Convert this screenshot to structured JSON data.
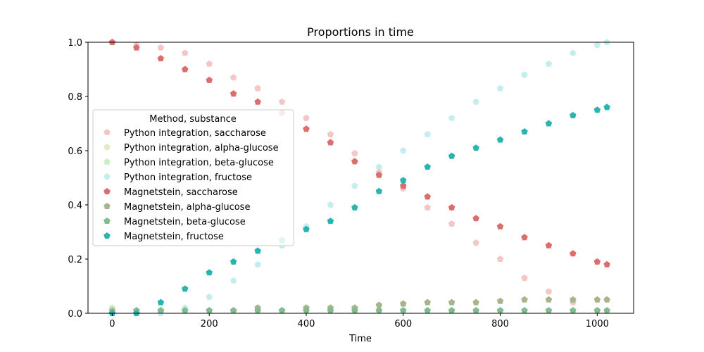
{
  "chart_data": {
    "type": "scatter",
    "title": "Proportions in time",
    "xlabel": "Time",
    "ylabel": "",
    "xlim": [
      -50,
      1075
    ],
    "ylim": [
      0,
      1
    ],
    "xticks": [
      0,
      200,
      400,
      600,
      800,
      1000
    ],
    "yticks": [
      0.0,
      0.2,
      0.4,
      0.6,
      0.8,
      1.0
    ],
    "grid": false,
    "legend_title": "Method, substance",
    "legend_position": "center-left",
    "series": [
      {
        "name": "Python integration, saccharose",
        "color": "#f4c6c6",
        "marker": "pentagon-light",
        "x": [
          0,
          50,
          100,
          150,
          200,
          250,
          300,
          350,
          400,
          450,
          500,
          550,
          600,
          650,
          700,
          750,
          800,
          850,
          900,
          950,
          1000,
          1020
        ],
        "y": [
          1.0,
          0.99,
          0.98,
          0.96,
          0.92,
          0.87,
          0.83,
          0.78,
          0.72,
          0.66,
          0.59,
          0.52,
          0.46,
          0.39,
          0.33,
          0.26,
          0.2,
          0.13,
          0.08,
          0.04,
          0.01,
          0.01
        ]
      },
      {
        "name": "Python integration, alpha-glucose",
        "color": "#e3ebc2",
        "marker": "pentagon-light",
        "x": [
          0,
          100,
          200,
          300,
          400,
          500,
          600,
          700,
          800,
          900,
          1000
        ],
        "y": [
          0.01,
          0.01,
          0.01,
          0.01,
          0.01,
          0.01,
          0.01,
          0.01,
          0.01,
          0.01,
          0.01
        ]
      },
      {
        "name": "Python integration, beta-glucose",
        "color": "#c8f0c2",
        "marker": "pentagon-light",
        "x": [
          0,
          100,
          200,
          300,
          400,
          500,
          600,
          700,
          800,
          900,
          1000
        ],
        "y": [
          0.02,
          0.01,
          0.01,
          0.01,
          0.01,
          0.01,
          0.01,
          0.01,
          0.01,
          0.01,
          0.01
        ]
      },
      {
        "name": "Python integration, fructose",
        "color": "#c4eeee",
        "marker": "pentagon-light",
        "x": [
          0,
          50,
          100,
          150,
          200,
          250,
          300,
          350,
          400,
          450,
          500,
          550,
          600,
          650,
          700,
          750,
          800,
          850,
          900,
          950,
          1000,
          1020
        ],
        "y": [
          0.0,
          0.0,
          0.0,
          0.02,
          0.06,
          0.12,
          0.18,
          0.25,
          0.32,
          0.4,
          0.47,
          0.54,
          0.6,
          0.66,
          0.72,
          0.78,
          0.83,
          0.88,
          0.92,
          0.96,
          0.99,
          1.0
        ]
      },
      {
        "name": "Magnetstein, saccharose",
        "color": "#db6d6c",
        "marker": "pentagon",
        "x": [
          0,
          50,
          100,
          150,
          200,
          250,
          300,
          350,
          400,
          450,
          500,
          550,
          600,
          650,
          700,
          750,
          800,
          850,
          900,
          950,
          1000,
          1020
        ],
        "y": [
          1.0,
          0.98,
          0.94,
          0.9,
          0.86,
          0.81,
          0.78,
          0.74,
          0.68,
          0.63,
          0.56,
          0.51,
          0.47,
          0.43,
          0.39,
          0.35,
          0.32,
          0.28,
          0.25,
          0.22,
          0.19,
          0.18
        ]
      },
      {
        "name": "Magnetstein, alpha-glucose",
        "color": "#a8b48a",
        "marker": "pentagon",
        "x": [
          0,
          50,
          100,
          150,
          200,
          250,
          300,
          350,
          400,
          450,
          500,
          550,
          600,
          650,
          700,
          750,
          800,
          850,
          900,
          950,
          1000,
          1020
        ],
        "y": [
          0.01,
          0.01,
          0.01,
          0.01,
          0.01,
          0.01,
          0.02,
          0.01,
          0.02,
          0.02,
          0.02,
          0.03,
          0.035,
          0.04,
          0.04,
          0.04,
          0.045,
          0.05,
          0.05,
          0.05,
          0.05,
          0.05
        ]
      },
      {
        "name": "Magnetstein, beta-glucose",
        "color": "#80bc8e",
        "marker": "pentagon",
        "x": [
          0,
          50,
          100,
          150,
          200,
          250,
          300,
          350,
          400,
          450,
          500,
          550,
          600,
          650,
          700,
          750,
          800,
          850,
          900,
          950,
          1000,
          1020
        ],
        "y": [
          0.0,
          0.01,
          0.01,
          0.01,
          0.01,
          0.01,
          0.01,
          0.01,
          0.01,
          0.01,
          0.01,
          0.01,
          0.01,
          0.01,
          0.01,
          0.01,
          0.01,
          0.01,
          0.01,
          0.01,
          0.01,
          0.01
        ]
      },
      {
        "name": "Magnetstein, fructose",
        "color": "#2ab4b0",
        "marker": "pentagon",
        "x": [
          0,
          50,
          100,
          150,
          200,
          250,
          300,
          350,
          400,
          450,
          500,
          550,
          600,
          650,
          700,
          750,
          800,
          850,
          900,
          950,
          1000,
          1020
        ],
        "y": [
          0.0,
          0.0,
          0.04,
          0.09,
          0.15,
          0.19,
          0.23,
          0.27,
          0.31,
          0.34,
          0.39,
          0.45,
          0.49,
          0.54,
          0.58,
          0.61,
          0.64,
          0.67,
          0.7,
          0.73,
          0.75,
          0.76
        ]
      }
    ]
  }
}
